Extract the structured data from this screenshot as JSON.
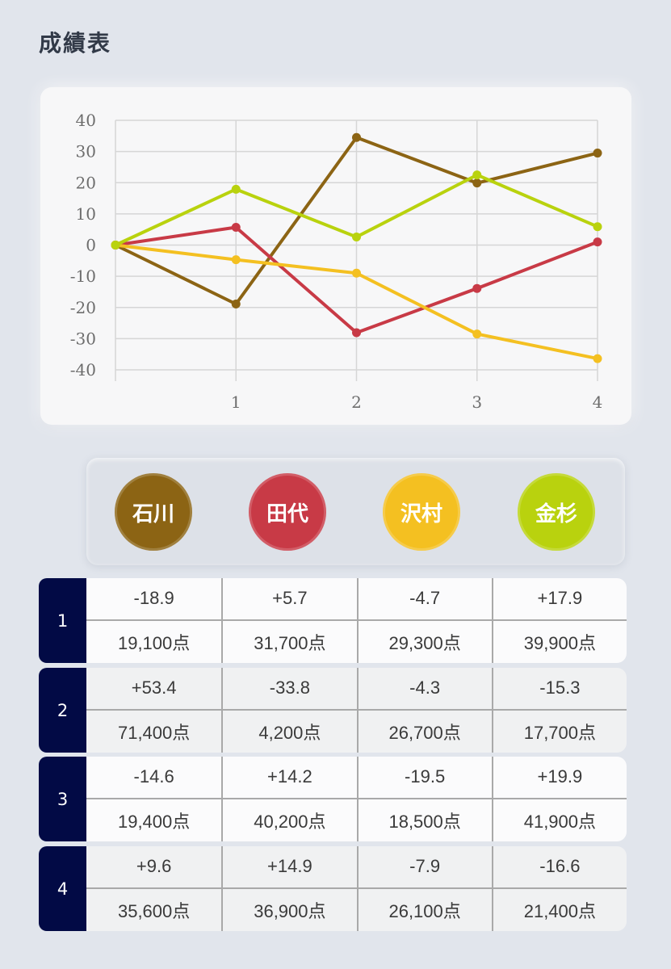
{
  "page": {
    "title": "成績表"
  },
  "players": [
    {
      "name": "石川",
      "color": "#8c6414"
    },
    {
      "name": "田代",
      "color": "#c83a46"
    },
    {
      "name": "沢村",
      "color": "#f4c021"
    },
    {
      "name": "金杉",
      "color": "#b9d20e"
    }
  ],
  "chart_data": {
    "type": "line",
    "x": [
      0,
      1,
      2,
      3,
      4
    ],
    "x_tick_labels": [
      "1",
      "2",
      "3",
      "4"
    ],
    "y_ticks": [
      "40",
      "30",
      "20",
      "10",
      "0",
      "-10",
      "-20",
      "-30",
      "-40"
    ],
    "ylim": [
      -40,
      40
    ],
    "grid": true,
    "series": [
      {
        "name": "石川",
        "color": "#8c6414",
        "values": [
          0,
          -18.9,
          34.5,
          19.9,
          29.5
        ]
      },
      {
        "name": "田代",
        "color": "#c83a46",
        "values": [
          0,
          5.7,
          -28.1,
          -13.9,
          1.0
        ]
      },
      {
        "name": "沢村",
        "color": "#f4c021",
        "values": [
          0,
          -4.7,
          -9.0,
          -28.5,
          -36.4
        ]
      },
      {
        "name": "金杉",
        "color": "#b9d20e",
        "values": [
          0,
          17.9,
          2.6,
          22.5,
          5.9
        ]
      }
    ]
  },
  "rounds": [
    {
      "label": "1",
      "diffs": [
        "-18.9",
        "+5.7",
        "-4.7",
        "+17.9"
      ],
      "points": [
        "19,100点",
        "31,700点",
        "29,300点",
        "39,900点"
      ]
    },
    {
      "label": "2",
      "diffs": [
        "+53.4",
        "-33.8",
        "-4.3",
        "-15.3"
      ],
      "points": [
        "71,400点",
        "4,200点",
        "26,700点",
        "17,700点"
      ]
    },
    {
      "label": "3",
      "diffs": [
        "-14.6",
        "+14.2",
        "-19.5",
        "+19.9"
      ],
      "points": [
        "19,400点",
        "40,200点",
        "18,500点",
        "41,900点"
      ]
    },
    {
      "label": "4",
      "diffs": [
        "+9.6",
        "+14.9",
        "-7.9",
        "-16.6"
      ],
      "points": [
        "35,600点",
        "36,900点",
        "26,100点",
        "21,400点"
      ]
    }
  ]
}
